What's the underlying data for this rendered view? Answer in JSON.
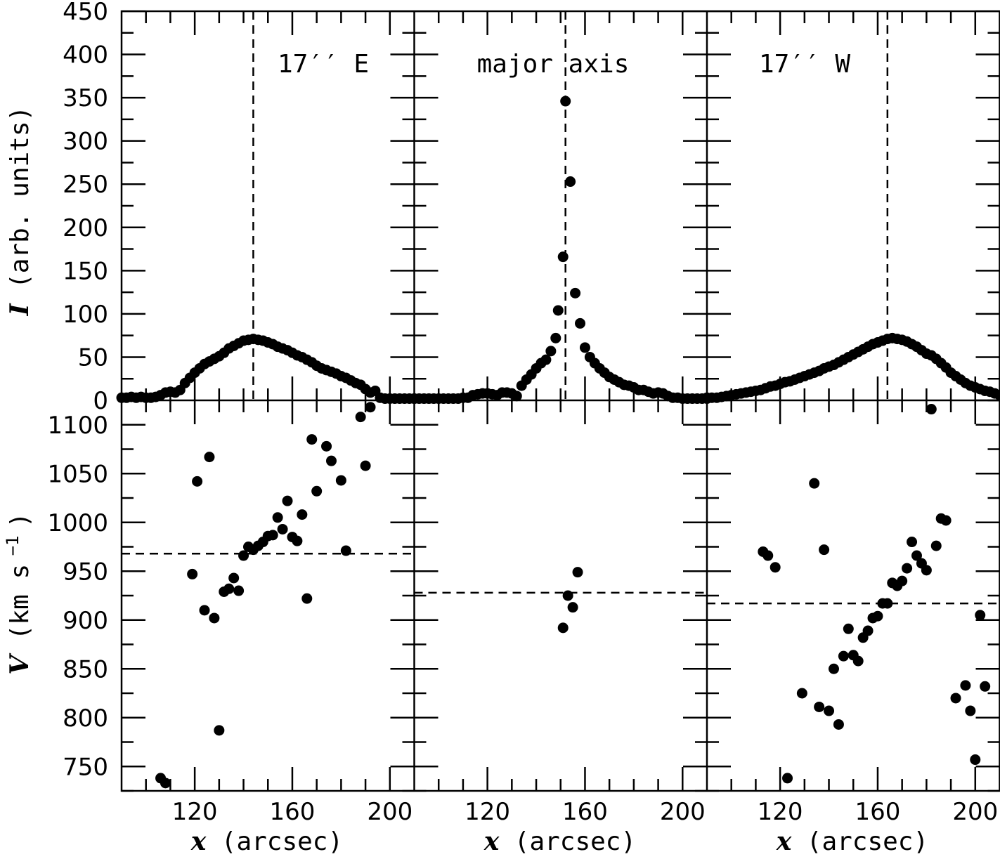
{
  "chart_data": {
    "type": "scatter",
    "layout": "2 rows x 3 columns, shared axes",
    "x_axis": {
      "label_symbol": "x",
      "label_unit": "(arcsec)",
      "range": [
        90,
        210
      ],
      "ticks": [
        "120",
        "160",
        "200"
      ],
      "tick_values": [
        120,
        160,
        200
      ]
    },
    "top_y_axis": {
      "label_symbol": "I",
      "label_unit": "(arb. units)",
      "range": [
        0,
        450
      ],
      "ticks": [
        "0",
        "50",
        "100",
        "150",
        "200",
        "250",
        "300",
        "350",
        "400",
        "450"
      ],
      "tick_values": [
        0,
        50,
        100,
        150,
        200,
        250,
        300,
        350,
        400,
        450
      ]
    },
    "bottom_y_axis": {
      "label_symbol": "V",
      "label_unit_open": "(km s",
      "label_exponent": "−1",
      "label_unit_close": ")",
      "range": [
        725,
        1125
      ],
      "ticks": [
        "750",
        "800",
        "850",
        "900",
        "950",
        "1000",
        "1050",
        "1100"
      ],
      "tick_values": [
        750,
        800,
        850,
        900,
        950,
        1000,
        1050,
        1100
      ]
    },
    "panels": [
      {
        "title": "17′′ E",
        "intensity_marker_x": 144,
        "velocity_systemic": 968,
        "intensity": [
          [
            90,
            3
          ],
          [
            92,
            3
          ],
          [
            94,
            4
          ],
          [
            96,
            3
          ],
          [
            98,
            4
          ],
          [
            100,
            3
          ],
          [
            102,
            3
          ],
          [
            104,
            4
          ],
          [
            106,
            6
          ],
          [
            108,
            9
          ],
          [
            110,
            10
          ],
          [
            112,
            9
          ],
          [
            114,
            12
          ],
          [
            116,
            20
          ],
          [
            118,
            26
          ],
          [
            120,
            32
          ],
          [
            122,
            37
          ],
          [
            124,
            42
          ],
          [
            126,
            45
          ],
          [
            128,
            48
          ],
          [
            130,
            51
          ],
          [
            132,
            55
          ],
          [
            134,
            60
          ],
          [
            136,
            63
          ],
          [
            138,
            66
          ],
          [
            140,
            69
          ],
          [
            142,
            70
          ],
          [
            144,
            71
          ],
          [
            146,
            70
          ],
          [
            148,
            69
          ],
          [
            150,
            67
          ],
          [
            152,
            65
          ],
          [
            154,
            62
          ],
          [
            156,
            60
          ],
          [
            158,
            58
          ],
          [
            160,
            55
          ],
          [
            162,
            52
          ],
          [
            164,
            50
          ],
          [
            166,
            47
          ],
          [
            168,
            44
          ],
          [
            170,
            40
          ],
          [
            172,
            37
          ],
          [
            174,
            35
          ],
          [
            176,
            33
          ],
          [
            178,
            31
          ],
          [
            180,
            28
          ],
          [
            182,
            26
          ],
          [
            184,
            23
          ],
          [
            186,
            20
          ],
          [
            188,
            18
          ],
          [
            190,
            13
          ],
          [
            192,
            9
          ],
          [
            194,
            11
          ],
          [
            196,
            3
          ],
          [
            198,
            2
          ],
          [
            200,
            2
          ],
          [
            202,
            2
          ],
          [
            204,
            2
          ],
          [
            206,
            2
          ],
          [
            208,
            2
          ],
          [
            210,
            2
          ]
        ],
        "velocity": [
          [
            106,
            738
          ],
          [
            108,
            733
          ],
          [
            119,
            947
          ],
          [
            121,
            1042
          ],
          [
            124,
            910
          ],
          [
            126,
            1067
          ],
          [
            128,
            902
          ],
          [
            130,
            787
          ],
          [
            132,
            929
          ],
          [
            134,
            932
          ],
          [
            136,
            943
          ],
          [
            138,
            930
          ],
          [
            140,
            966
          ],
          [
            142,
            975
          ],
          [
            144,
            972
          ],
          [
            146,
            976
          ],
          [
            148,
            980
          ],
          [
            150,
            986
          ],
          [
            152,
            987
          ],
          [
            154,
            1005
          ],
          [
            156,
            993
          ],
          [
            158,
            1022
          ],
          [
            160,
            985
          ],
          [
            162,
            981
          ],
          [
            164,
            1008
          ],
          [
            166,
            922
          ],
          [
            168,
            1085
          ],
          [
            170,
            1032
          ],
          [
            174,
            1078
          ],
          [
            176,
            1063
          ],
          [
            180,
            1043
          ],
          [
            182,
            971
          ],
          [
            188,
            1108
          ],
          [
            190,
            1058
          ],
          [
            192,
            1118
          ]
        ]
      },
      {
        "title": "major axis",
        "intensity_marker_x": 152,
        "velocity_systemic": 928,
        "intensity": [
          [
            90,
            2
          ],
          [
            92,
            2
          ],
          [
            94,
            2
          ],
          [
            96,
            2
          ],
          [
            98,
            2
          ],
          [
            100,
            2
          ],
          [
            102,
            2
          ],
          [
            104,
            2
          ],
          [
            106,
            2
          ],
          [
            108,
            2
          ],
          [
            110,
            3
          ],
          [
            112,
            3
          ],
          [
            114,
            6
          ],
          [
            116,
            7
          ],
          [
            118,
            8
          ],
          [
            120,
            8
          ],
          [
            122,
            7
          ],
          [
            124,
            6
          ],
          [
            126,
            9
          ],
          [
            128,
            9
          ],
          [
            130,
            8
          ],
          [
            132,
            5
          ],
          [
            134,
            17
          ],
          [
            136,
            24
          ],
          [
            138,
            30
          ],
          [
            140,
            37
          ],
          [
            142,
            43
          ],
          [
            144,
            47
          ],
          [
            146,
            57
          ],
          [
            148,
            72
          ],
          [
            149,
            104
          ],
          [
            151,
            166
          ],
          [
            152,
            346
          ],
          [
            154,
            253
          ],
          [
            156,
            124
          ],
          [
            158,
            89
          ],
          [
            160,
            61
          ],
          [
            162,
            50
          ],
          [
            164,
            43
          ],
          [
            166,
            37
          ],
          [
            168,
            32
          ],
          [
            170,
            27
          ],
          [
            172,
            24
          ],
          [
            174,
            21
          ],
          [
            176,
            18
          ],
          [
            178,
            17
          ],
          [
            180,
            15
          ],
          [
            182,
            12
          ],
          [
            184,
            12
          ],
          [
            186,
            10
          ],
          [
            188,
            8
          ],
          [
            190,
            9
          ],
          [
            192,
            8
          ],
          [
            194,
            5
          ],
          [
            196,
            3
          ],
          [
            198,
            3
          ],
          [
            200,
            2
          ],
          [
            202,
            2
          ],
          [
            204,
            2
          ],
          [
            206,
            2
          ],
          [
            208,
            2
          ],
          [
            210,
            2
          ]
        ],
        "velocity": [
          [
            151,
            892
          ],
          [
            153,
            925
          ],
          [
            155,
            913
          ],
          [
            157,
            949
          ]
        ]
      },
      {
        "title": "17′′ W",
        "intensity_marker_x": 164,
        "velocity_systemic": 917,
        "intensity": [
          [
            90,
            3
          ],
          [
            92,
            3
          ],
          [
            94,
            3
          ],
          [
            96,
            4
          ],
          [
            98,
            5
          ],
          [
            100,
            6
          ],
          [
            102,
            7
          ],
          [
            104,
            8
          ],
          [
            106,
            9
          ],
          [
            108,
            10
          ],
          [
            110,
            11
          ],
          [
            112,
            12
          ],
          [
            114,
            14
          ],
          [
            116,
            16
          ],
          [
            118,
            17
          ],
          [
            120,
            19
          ],
          [
            122,
            21
          ],
          [
            124,
            22
          ],
          [
            126,
            24
          ],
          [
            128,
            26
          ],
          [
            130,
            28
          ],
          [
            132,
            30
          ],
          [
            134,
            32
          ],
          [
            136,
            34
          ],
          [
            138,
            37
          ],
          [
            140,
            39
          ],
          [
            142,
            41
          ],
          [
            144,
            44
          ],
          [
            146,
            47
          ],
          [
            148,
            50
          ],
          [
            150,
            53
          ],
          [
            152,
            56
          ],
          [
            154,
            59
          ],
          [
            156,
            62
          ],
          [
            158,
            65
          ],
          [
            160,
            67
          ],
          [
            162,
            69
          ],
          [
            164,
            71
          ],
          [
            166,
            72
          ],
          [
            168,
            71
          ],
          [
            170,
            70
          ],
          [
            172,
            68
          ],
          [
            174,
            65
          ],
          [
            176,
            62
          ],
          [
            178,
            58
          ],
          [
            180,
            54
          ],
          [
            182,
            52
          ],
          [
            184,
            48
          ],
          [
            186,
            43
          ],
          [
            188,
            38
          ],
          [
            190,
            32
          ],
          [
            192,
            28
          ],
          [
            194,
            24
          ],
          [
            196,
            20
          ],
          [
            198,
            17
          ],
          [
            200,
            15
          ],
          [
            202,
            13
          ],
          [
            204,
            11
          ],
          [
            206,
            10
          ],
          [
            208,
            8
          ],
          [
            210,
            6
          ]
        ],
        "velocity": [
          [
            113,
            970
          ],
          [
            115,
            966
          ],
          [
            118,
            954
          ],
          [
            123,
            738
          ],
          [
            129,
            825
          ],
          [
            134,
            1040
          ],
          [
            136,
            811
          ],
          [
            138,
            972
          ],
          [
            140,
            807
          ],
          [
            142,
            850
          ],
          [
            144,
            793
          ],
          [
            146,
            863
          ],
          [
            148,
            891
          ],
          [
            150,
            864
          ],
          [
            152,
            858
          ],
          [
            154,
            882
          ],
          [
            156,
            889
          ],
          [
            158,
            902
          ],
          [
            160,
            904
          ],
          [
            162,
            917
          ],
          [
            164,
            917
          ],
          [
            166,
            938
          ],
          [
            168,
            935
          ],
          [
            170,
            940
          ],
          [
            172,
            953
          ],
          [
            174,
            980
          ],
          [
            176,
            966
          ],
          [
            178,
            958
          ],
          [
            180,
            951
          ],
          [
            182,
            1116
          ],
          [
            184,
            976
          ],
          [
            186,
            1004
          ],
          [
            188,
            1002
          ],
          [
            192,
            820
          ],
          [
            196,
            833
          ],
          [
            198,
            807
          ],
          [
            200,
            757
          ],
          [
            202,
            905
          ],
          [
            204,
            832
          ]
        ]
      }
    ]
  }
}
